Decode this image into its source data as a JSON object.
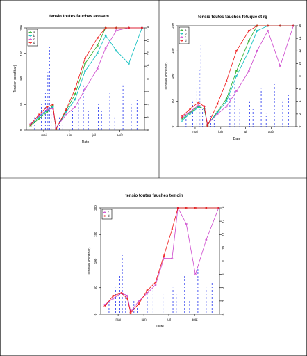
{
  "chart_data": [
    {
      "type": "line",
      "title": "tensio toutes fauches ecosem",
      "xlabel": "Date",
      "ylabel": "Tension (centibar)",
      "ylim": [
        0,
        200
      ],
      "y2lim": [
        0,
        16
      ],
      "y_ticks": [
        "0",
        "50",
        "100",
        "150",
        "200"
      ],
      "y2_ticks": [
        "0",
        "2",
        "4",
        "6",
        "8",
        "10",
        "12",
        "14",
        "16"
      ],
      "x_ticks": [
        "mai",
        "juin",
        "juil",
        "août"
      ],
      "xlim": [
        "2009-04-10",
        "2009-08-31"
      ],
      "legend": {
        "position": "top-left",
        "entries": [
          "a",
          "b",
          "c",
          "d"
        ]
      },
      "series": [
        {
          "name": "a",
          "color": "#22aa22",
          "points": [
            [
              "2009-04-15",
              8
            ],
            [
              "2009-04-25",
              22
            ],
            [
              "2009-05-05",
              35
            ],
            [
              "2009-05-12",
              48
            ],
            [
              "2009-05-16",
              2
            ],
            [
              "2009-05-28",
              38
            ],
            [
              "2009-06-08",
              70
            ],
            [
              "2009-06-20",
              130
            ],
            [
              "2009-07-05",
              165
            ],
            [
              "2009-07-15",
              200
            ],
            [
              "2009-07-28",
              200
            ],
            [
              "2009-08-12",
              200
            ],
            [
              "2009-08-28",
              200
            ]
          ]
        },
        {
          "name": "b",
          "color": "#00bbbb",
          "points": [
            [
              "2009-04-15",
              10
            ],
            [
              "2009-04-25",
              25
            ],
            [
              "2009-05-05",
              38
            ],
            [
              "2009-05-12",
              45
            ],
            [
              "2009-05-16",
              3
            ],
            [
              "2009-05-28",
              35
            ],
            [
              "2009-06-08",
              60
            ],
            [
              "2009-06-20",
              115
            ],
            [
              "2009-07-05",
              150
            ],
            [
              "2009-07-15",
              185
            ],
            [
              "2009-07-28",
              155
            ],
            [
              "2009-08-12",
              130
            ],
            [
              "2009-08-28",
              200
            ]
          ]
        },
        {
          "name": "c",
          "color": "#cc44cc",
          "points": [
            [
              "2009-04-15",
              12
            ],
            [
              "2009-04-25",
              28
            ],
            [
              "2009-05-05",
              40
            ],
            [
              "2009-05-12",
              42
            ],
            [
              "2009-05-16",
              5
            ],
            [
              "2009-05-28",
              30
            ],
            [
              "2009-06-08",
              45
            ],
            [
              "2009-06-20",
              80
            ],
            [
              "2009-07-05",
              120
            ],
            [
              "2009-07-15",
              160
            ],
            [
              "2009-07-28",
              195
            ],
            [
              "2009-08-12",
              200
            ],
            [
              "2009-08-28",
              200
            ]
          ]
        },
        {
          "name": "d",
          "color": "#ee1111",
          "points": [
            [
              "2009-04-15",
              10
            ],
            [
              "2009-04-25",
              30
            ],
            [
              "2009-05-05",
              45
            ],
            [
              "2009-05-12",
              50
            ],
            [
              "2009-05-16",
              2
            ],
            [
              "2009-05-28",
              40
            ],
            [
              "2009-06-08",
              80
            ],
            [
              "2009-06-20",
              140
            ],
            [
              "2009-07-05",
              180
            ],
            [
              "2009-07-15",
              200
            ],
            [
              "2009-07-28",
              200
            ],
            [
              "2009-08-12",
              200
            ],
            [
              "2009-08-28",
              200
            ]
          ]
        }
      ],
      "rain": {
        "color": "#2233ee",
        "points": [
          [
            "2009-04-20",
            2
          ],
          [
            "2009-04-28",
            4
          ],
          [
            "2009-05-03",
            6
          ],
          [
            "2009-05-06",
            9
          ],
          [
            "2009-05-08",
            13
          ],
          [
            "2009-05-10",
            3
          ],
          [
            "2009-05-20",
            2
          ],
          [
            "2009-05-24",
            1
          ],
          [
            "2009-06-05",
            3
          ],
          [
            "2009-06-12",
            5
          ],
          [
            "2009-06-18",
            7
          ],
          [
            "2009-06-24",
            3
          ],
          [
            "2009-07-06",
            4
          ],
          [
            "2009-07-10",
            3
          ],
          [
            "2009-07-20",
            6
          ],
          [
            "2009-07-26",
            2
          ],
          [
            "2009-08-05",
            7
          ],
          [
            "2009-08-15",
            4
          ],
          [
            "2009-08-22",
            5
          ]
        ]
      }
    },
    {
      "type": "line",
      "title": "tensio toutes fauches fetuque et rg",
      "xlabel": "Date",
      "ylabel": "Tension (centibar)",
      "ylim": [
        0,
        200
      ],
      "y2lim": [
        0,
        16
      ],
      "y_ticks": [
        "0",
        "50",
        "100",
        "150",
        "200"
      ],
      "y2_ticks": [
        "0",
        "2",
        "4",
        "6",
        "8",
        "10",
        "12",
        "14",
        "16"
      ],
      "x_ticks": [
        "mai",
        "juin",
        "juil",
        "août"
      ],
      "xlim": [
        "2009-04-10",
        "2009-08-31"
      ],
      "legend": {
        "position": "top-left",
        "entries": [
          "a",
          "b",
          "c",
          "d"
        ]
      },
      "series": [
        {
          "name": "a",
          "color": "#22aa22",
          "points": [
            [
              "2009-04-15",
              15
            ],
            [
              "2009-04-25",
              28
            ],
            [
              "2009-05-05",
              40
            ],
            [
              "2009-05-12",
              35
            ],
            [
              "2009-05-16",
              3
            ],
            [
              "2009-05-28",
              30
            ],
            [
              "2009-06-08",
              55
            ],
            [
              "2009-06-20",
              110
            ],
            [
              "2009-07-05",
              170
            ],
            [
              "2009-07-15",
              200
            ],
            [
              "2009-07-28",
              200
            ],
            [
              "2009-08-12",
              200
            ],
            [
              "2009-08-28",
              200
            ]
          ]
        },
        {
          "name": "b",
          "color": "#00bbbb",
          "points": [
            [
              "2009-04-15",
              12
            ],
            [
              "2009-04-25",
              26
            ],
            [
              "2009-05-05",
              38
            ],
            [
              "2009-05-12",
              36
            ],
            [
              "2009-05-16",
              4
            ],
            [
              "2009-05-28",
              28
            ],
            [
              "2009-06-08",
              50
            ],
            [
              "2009-06-20",
              100
            ],
            [
              "2009-07-05",
              150
            ],
            [
              "2009-07-15",
              190
            ],
            [
              "2009-07-28",
              200
            ],
            [
              "2009-08-12",
              200
            ],
            [
              "2009-08-28",
              200
            ]
          ]
        },
        {
          "name": "c",
          "color": "#cc44cc",
          "points": [
            [
              "2009-04-15",
              18
            ],
            [
              "2009-04-25",
              30
            ],
            [
              "2009-05-05",
              42
            ],
            [
              "2009-05-12",
              40
            ],
            [
              "2009-05-16",
              5
            ],
            [
              "2009-05-28",
              25
            ],
            [
              "2009-06-08",
              40
            ],
            [
              "2009-06-20",
              70
            ],
            [
              "2009-07-05",
              110
            ],
            [
              "2009-07-15",
              150
            ],
            [
              "2009-07-28",
              190
            ],
            [
              "2009-08-12",
              120
            ],
            [
              "2009-08-28",
              200
            ]
          ]
        },
        {
          "name": "d",
          "color": "#ee1111",
          "points": [
            [
              "2009-04-15",
              20
            ],
            [
              "2009-04-25",
              35
            ],
            [
              "2009-05-05",
              48
            ],
            [
              "2009-05-12",
              40
            ],
            [
              "2009-05-16",
              2
            ],
            [
              "2009-05-28",
              45
            ],
            [
              "2009-06-08",
              90
            ],
            [
              "2009-06-20",
              150
            ],
            [
              "2009-07-05",
              190
            ],
            [
              "2009-07-15",
              200
            ],
            [
              "2009-07-28",
              200
            ],
            [
              "2009-08-12",
              200
            ],
            [
              "2009-08-28",
              200
            ]
          ]
        }
      ],
      "rain": {
        "color": "#2233ee",
        "points": [
          [
            "2009-04-20",
            2
          ],
          [
            "2009-04-28",
            4
          ],
          [
            "2009-05-03",
            6
          ],
          [
            "2009-05-06",
            9
          ],
          [
            "2009-05-08",
            13
          ],
          [
            "2009-05-10",
            3
          ],
          [
            "2009-05-20",
            2
          ],
          [
            "2009-05-24",
            1
          ],
          [
            "2009-06-05",
            3
          ],
          [
            "2009-06-12",
            5
          ],
          [
            "2009-06-18",
            7
          ],
          [
            "2009-06-24",
            3
          ],
          [
            "2009-07-06",
            4
          ],
          [
            "2009-07-10",
            3
          ],
          [
            "2009-07-20",
            6
          ],
          [
            "2009-07-26",
            2
          ],
          [
            "2009-08-05",
            7
          ],
          [
            "2009-08-15",
            4
          ],
          [
            "2009-08-22",
            5
          ]
        ]
      }
    },
    {
      "type": "line",
      "title": "tensio toutes fauches temoin",
      "xlabel": "Date",
      "ylabel": "Tension (centibar)",
      "ylim": [
        0,
        200
      ],
      "y2lim": [
        0,
        16
      ],
      "y_ticks": [
        "0",
        "50",
        "100",
        "150",
        "200"
      ],
      "y2_ticks": [
        "0",
        "2",
        "4",
        "6",
        "8",
        "10",
        "12",
        "14",
        "16"
      ],
      "x_ticks": [
        "mai",
        "juin",
        "juil",
        "août"
      ],
      "xlim": [
        "2009-04-10",
        "2009-08-31"
      ],
      "legend": {
        "position": "top-left",
        "entries": [
          "c",
          "d"
        ]
      },
      "series": [
        {
          "name": "c",
          "color": "#cc44cc",
          "points": [
            [
              "2009-04-15",
              18
            ],
            [
              "2009-04-25",
              30
            ],
            [
              "2009-05-05",
              40
            ],
            [
              "2009-05-12",
              35
            ],
            [
              "2009-05-16",
              5
            ],
            [
              "2009-05-26",
              25
            ],
            [
              "2009-06-05",
              40
            ],
            [
              "2009-06-15",
              55
            ],
            [
              "2009-06-25",
              105
            ],
            [
              "2009-07-05",
              105
            ],
            [
              "2009-07-12",
              200
            ],
            [
              "2009-07-22",
              170
            ],
            [
              "2009-08-02",
              75
            ],
            [
              "2009-08-15",
              140
            ],
            [
              "2009-08-30",
              200
            ]
          ]
        },
        {
          "name": "d",
          "color": "#ee1111",
          "points": [
            [
              "2009-04-15",
              15
            ],
            [
              "2009-04-25",
              35
            ],
            [
              "2009-05-05",
              40
            ],
            [
              "2009-05-12",
              30
            ],
            [
              "2009-05-16",
              3
            ],
            [
              "2009-05-26",
              20
            ],
            [
              "2009-06-05",
              45
            ],
            [
              "2009-06-15",
              60
            ],
            [
              "2009-06-25",
              110
            ],
            [
              "2009-07-05",
              160
            ],
            [
              "2009-07-12",
              200
            ],
            [
              "2009-07-22",
              200
            ],
            [
              "2009-08-02",
              200
            ],
            [
              "2009-08-15",
              200
            ],
            [
              "2009-08-30",
              200
            ]
          ]
        }
      ],
      "rain": {
        "color": "#2233ee",
        "points": [
          [
            "2009-04-20",
            2
          ],
          [
            "2009-04-28",
            4
          ],
          [
            "2009-05-03",
            6
          ],
          [
            "2009-05-06",
            9
          ],
          [
            "2009-05-08",
            13
          ],
          [
            "2009-05-10",
            3
          ],
          [
            "2009-05-20",
            2
          ],
          [
            "2009-05-24",
            1
          ],
          [
            "2009-06-05",
            3
          ],
          [
            "2009-06-12",
            5
          ],
          [
            "2009-06-18",
            7
          ],
          [
            "2009-06-24",
            3
          ],
          [
            "2009-07-06",
            4
          ],
          [
            "2009-07-10",
            3
          ],
          [
            "2009-07-20",
            6
          ],
          [
            "2009-07-26",
            2
          ],
          [
            "2009-08-05",
            7
          ],
          [
            "2009-08-15",
            4
          ],
          [
            "2009-08-22",
            5
          ]
        ]
      }
    }
  ]
}
